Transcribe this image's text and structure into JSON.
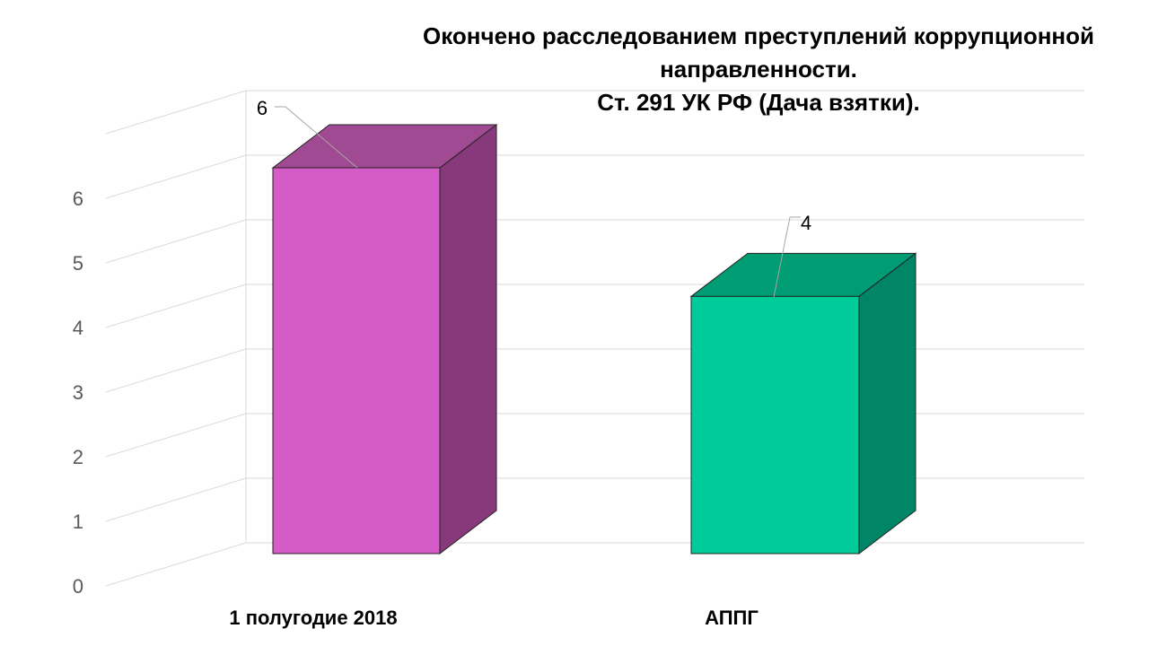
{
  "chart_data": {
    "type": "bar",
    "title_lines": [
      "Окончено расследованием преступлений коррупционной",
      "направленности.",
      "Ст. 291 УК РФ (Дача взятки)."
    ],
    "categories": [
      "1 полугодие 2018",
      "АППГ"
    ],
    "values": [
      6,
      4
    ],
    "data_labels": [
      "6",
      "4"
    ],
    "ylim": [
      0,
      6
    ],
    "yticks": [
      "0",
      "1",
      "2",
      "3",
      "4",
      "5",
      "6"
    ],
    "colors": {
      "bar1_front": "#d55bc6",
      "bar1_top": "#a04a94",
      "bar1_side": "#87397b",
      "bar2_front": "#00cc99",
      "bar2_top": "#009c74",
      "bar2_side": "#008566",
      "grid": "#d9d9d9"
    },
    "grid": true,
    "style": "3d-column"
  }
}
